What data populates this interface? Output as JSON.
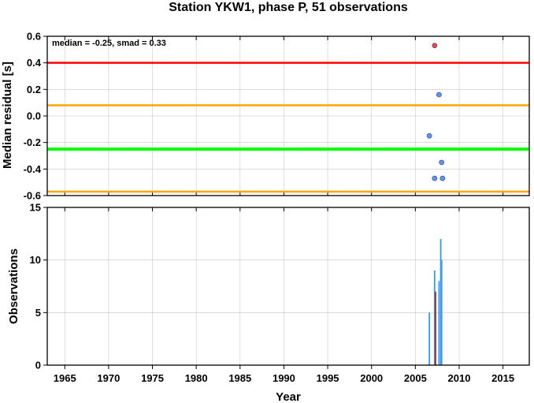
{
  "figure": {
    "title": "Station YKW1, phase P, 51 observations"
  },
  "chart_data": [
    {
      "type": "scatter",
      "ylabel": "Median residual [s]",
      "xlim": [
        1963,
        2018
      ],
      "ylim": [
        -0.6,
        0.6
      ],
      "yticks": [
        -0.6,
        -0.4,
        -0.2,
        0.0,
        0.2,
        0.4,
        0.6
      ],
      "ytick_labels": [
        "-0.6",
        "-0.4",
        "-0.2",
        "0.0",
        "0.2",
        "0.4",
        "0.6"
      ],
      "grid": true,
      "annotation": "median = -0.25, smad = 0.33",
      "reference_lines": [
        {
          "y": 0.4,
          "color": "#ff0000"
        },
        {
          "y": 0.08,
          "color": "#ffa500"
        },
        {
          "y": -0.25,
          "color": "#00ff00"
        },
        {
          "y": -0.57,
          "color": "#ffa500"
        }
      ],
      "points": [
        {
          "x": 2006.6,
          "y": -0.15,
          "color": "#6495ed"
        },
        {
          "x": 2007.2,
          "y": 0.53,
          "color": "#ff4040"
        },
        {
          "x": 2007.2,
          "y": -0.47,
          "color": "#6495ed"
        },
        {
          "x": 2007.7,
          "y": 0.16,
          "color": "#6495ed"
        },
        {
          "x": 2008.0,
          "y": -0.35,
          "color": "#6495ed"
        },
        {
          "x": 2008.1,
          "y": -0.47,
          "color": "#6495ed"
        }
      ]
    },
    {
      "type": "bar",
      "xlabel": "Year",
      "ylabel": "Observations",
      "xlim": [
        1963,
        2018
      ],
      "ylim": [
        0,
        15
      ],
      "yticks": [
        0,
        5,
        10,
        15
      ],
      "ytick_labels": [
        "0",
        "5",
        "10",
        "15"
      ],
      "xticks": [
        1965,
        1970,
        1975,
        1980,
        1985,
        1990,
        1995,
        2000,
        2005,
        2010,
        2015
      ],
      "xtick_labels": [
        "1965",
        "1970",
        "1975",
        "1980",
        "1985",
        "1990",
        "1995",
        "2000",
        "2005",
        "2010",
        "2015"
      ],
      "grid": true,
      "bars": [
        {
          "x": 2006.6,
          "value": 5,
          "color": "#3399ff"
        },
        {
          "x": 2007.2,
          "value": 9,
          "color": "#3399ff"
        },
        {
          "x": 2007.3,
          "value": 7,
          "color": "#b22222"
        },
        {
          "x": 2007.7,
          "value": 8,
          "color": "#3399ff"
        },
        {
          "x": 2007.9,
          "value": 12,
          "color": "#3399ff"
        },
        {
          "x": 2008.0,
          "value": 10,
          "color": "#3399ff"
        }
      ]
    }
  ]
}
